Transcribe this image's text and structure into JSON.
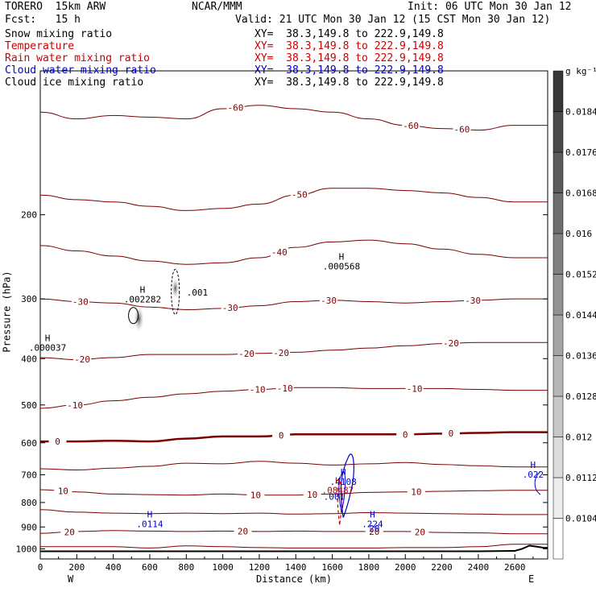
{
  "header": {
    "model": "TORERO  15km ARW",
    "center": "NCAR/MMM",
    "init": "Init: 06 UTC Mon 30 Jan 12",
    "fcst": "Fcst:   15 h",
    "valid": "Valid: 21 UTC Mon 30 Jan 12 (15 CST Mon 30 Jan 12)",
    "fields": [
      {
        "name": "Snow mixing ratio",
        "xy": "XY=  38.3,149.8 to 222.9,149.8",
        "color": "#000000"
      },
      {
        "name": "Temperature",
        "xy": "XY=  38.3,149.8 to 222.9,149.8",
        "color": "#cc0000"
      },
      {
        "name": "Rain water mixing ratio",
        "xy": "XY=  38.3,149.8 to 222.9,149.8",
        "color": "#cc0000"
      },
      {
        "name": "Cloud water mixing ratio",
        "xy": "XY=  38.3,149.8 to 222.9,149.8",
        "color": "#0000cc"
      },
      {
        "name": "Cloud ice mixing ratio",
        "xy": "XY=  38.3,149.8 to 222.9,149.8",
        "color": "#000000"
      }
    ]
  },
  "chart_data": {
    "type": "cross-section contour",
    "xlabel": "Distance (km)",
    "ylabel": "Pressure (hPa)",
    "x_ticks": [
      0,
      200,
      400,
      600,
      800,
      1000,
      1200,
      1400,
      1600,
      1800,
      2000,
      2200,
      2400,
      2600
    ],
    "y_ticks": [
      200,
      300,
      400,
      500,
      600,
      700,
      800,
      900,
      1000
    ],
    "xlim": [
      0,
      2780
    ],
    "ylim": [
      1050,
      100
    ],
    "y_scale": "log",
    "left_end": "W",
    "right_end": "E",
    "colorbar": {
      "unit": "g kg⁻¹",
      "levels": [
        "0.0104",
        "0.0112",
        "0.012",
        "0.0128",
        "0.0136",
        "0.0144",
        "0.0152",
        "0.016",
        "0.0168",
        "0.0176",
        "0.0184"
      ]
    },
    "isotherms": [
      {
        "t": -60,
        "p": [
          122,
          126,
          124,
          125,
          126,
          120,
          118,
          120,
          122,
          126,
          130,
          132,
          133,
          130
        ],
        "labels": [
          {
            "x": 1070,
            "t": "-60"
          },
          {
            "x": 2030,
            "t": "-60"
          },
          {
            "x": 2310,
            "t": "-60"
          }
        ]
      },
      {
        "t": -50,
        "p": [
          182,
          186,
          188,
          192,
          196,
          194,
          190,
          182,
          176,
          176,
          178,
          180,
          184,
          188
        ],
        "labels": [
          {
            "x": 1420,
            "t": "-50"
          }
        ]
      },
      {
        "t": -40,
        "p": [
          232,
          238,
          244,
          250,
          254,
          252,
          246,
          234,
          228,
          226,
          230,
          236,
          242,
          246
        ],
        "labels": [
          {
            "x": 1310,
            "t": "-40"
          }
        ]
      },
      {
        "t": -30,
        "p": [
          300,
          304,
          306,
          312,
          316,
          314,
          310,
          304,
          302,
          304,
          306,
          304,
          302,
          300
        ],
        "labels": [
          {
            "x": 220,
            "t": "-30"
          },
          {
            "x": 1040,
            "t": "-30"
          },
          {
            "x": 1580,
            "t": "-30"
          },
          {
            "x": 2370,
            "t": "-30"
          }
        ]
      },
      {
        "t": -20,
        "p": [
          398,
          402,
          398,
          392,
          392,
          392,
          390,
          388,
          384,
          380,
          376,
          372,
          370,
          370
        ],
        "labels": [
          {
            "x": 230,
            "t": "-20"
          },
          {
            "x": 1130,
            "t": "-20"
          },
          {
            "x": 1320,
            "t": "-20"
          },
          {
            "x": 2250,
            "t": "-20"
          }
        ]
      },
      {
        "t": -10,
        "p": [
          508,
          500,
          490,
          482,
          474,
          468,
          464,
          460,
          460,
          462,
          462,
          462,
          464,
          466
        ],
        "labels": [
          {
            "x": 190,
            "t": "-10"
          },
          {
            "x": 1190,
            "t": "-10"
          },
          {
            "x": 1340,
            "t": "-10"
          },
          {
            "x": 2050,
            "t": "-10"
          }
        ]
      },
      {
        "t": 0,
        "p": [
          596,
          596,
          594,
          596,
          588,
          582,
          582,
          576,
          576,
          576,
          576,
          574,
          572,
          570
        ],
        "labels": [
          {
            "x": 95,
            "t": "0"
          },
          {
            "x": 1320,
            "t": "0"
          },
          {
            "x": 2000,
            "t": "0"
          },
          {
            "x": 2250,
            "t": "0"
          }
        ]
      },
      {
        "t": 5,
        "p": [
          680,
          684,
          678,
          672,
          662,
          664,
          656,
          662,
          668,
          664,
          660,
          666,
          670,
          674
        ],
        "labels": []
      },
      {
        "t": 10,
        "p": [
          752,
          760,
          768,
          770,
          772,
          768,
          772,
          772,
          768,
          762,
          760,
          758,
          756,
          754
        ],
        "labels": [
          {
            "x": 125,
            "t": "10"
          },
          {
            "x": 1180,
            "t": "10"
          },
          {
            "x": 1490,
            "t": "10"
          },
          {
            "x": 2060,
            "t": "10"
          }
        ]
      },
      {
        "t": 15,
        "p": [
          828,
          838,
          842,
          844,
          842,
          844,
          842,
          846,
          844,
          840,
          842,
          844,
          846,
          848
        ],
        "labels": []
      },
      {
        "t": 20,
        "p": [
          928,
          920,
          916,
          918,
          920,
          918,
          920,
          918,
          920,
          920,
          920,
          924,
          926,
          930
        ],
        "labels": [
          {
            "x": 160,
            "t": "20"
          },
          {
            "x": 1110,
            "t": "20"
          },
          {
            "x": 1830,
            "t": "20"
          },
          {
            "x": 2080,
            "t": "20"
          }
        ]
      },
      {
        "t": 25,
        "p": [
          990,
          990,
          990,
          996,
          986,
          990,
          994,
          996,
          996,
          996,
          994,
          994,
          990,
          978
        ],
        "labels": []
      }
    ],
    "isotherm_x": [
      0,
      200,
      400,
      600,
      800,
      1000,
      1200,
      1400,
      1600,
      1800,
      2000,
      2200,
      2400,
      2600
    ],
    "extrema": [
      {
        "label": "H",
        "value": ".000568",
        "x": 1650,
        "p": 260,
        "color": "#000000"
      },
      {
        "label": "H",
        "value": ".002282",
        "x": 560,
        "p": 305,
        "color": "#000000"
      },
      {
        "label": "",
        "value": ".001",
        "x": 860,
        "p": 295,
        "color": "#000000"
      },
      {
        "label": "H",
        "value": ".000037",
        "x": 40,
        "p": 385,
        "color": "#000000"
      },
      {
        "label": "H",
        "value": ".4108",
        "x": 1660,
        "p": 735,
        "color": "#0000cc"
      },
      {
        "label": "H",
        "value": ".08487",
        "x": 1630,
        "p": 765,
        "color": "#cc0000"
      },
      {
        "label": "",
        "value": ".001",
        "x": 1610,
        "p": 790,
        "color": "#0000cc"
      },
      {
        "label": "H",
        "value": ".0114",
        "x": 600,
        "p": 900,
        "color": "#0000cc"
      },
      {
        "label": "H",
        "value": ".224",
        "x": 1820,
        "p": 900,
        "color": "#0000cc"
      },
      {
        "label": "",
        "value": "20",
        "x": 1830,
        "p": 920,
        "color": "#0000cc"
      },
      {
        "label": "H",
        "value": ".022",
        "x": 2700,
        "p": 710,
        "color": "#0000cc"
      }
    ],
    "terrain": {
      "x": [
        0,
        600,
        1200,
        1800,
        2400,
        2600,
        2640,
        2680,
        2720,
        2760
      ],
      "p": [
        1012,
        1012,
        1012,
        1012,
        1012,
        1010,
        1000,
        985,
        990,
        995
      ]
    }
  }
}
